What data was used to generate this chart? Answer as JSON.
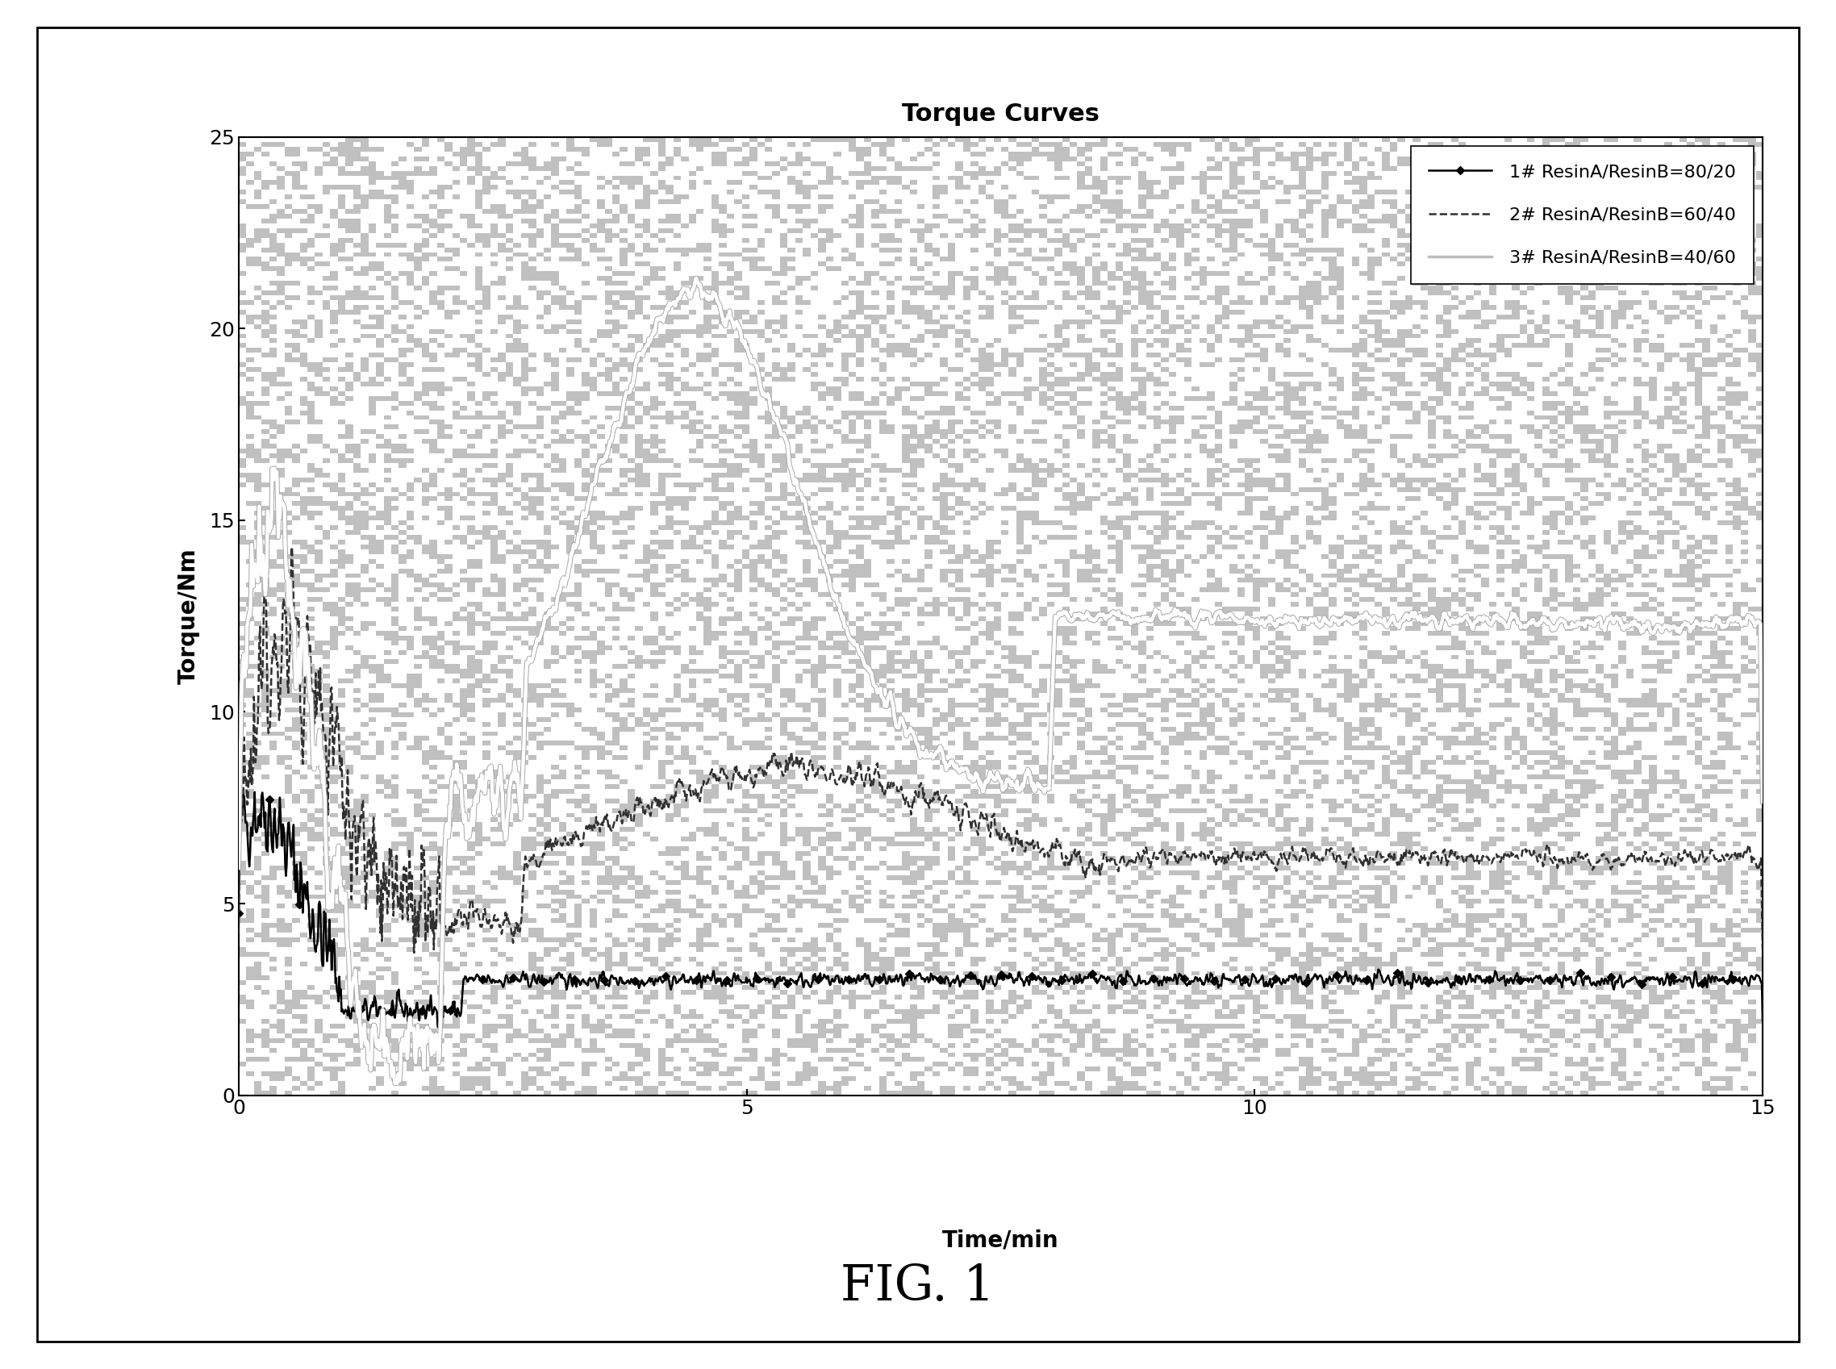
{
  "title": "Torque Curves",
  "xlabel": "Time/min",
  "ylabel": "Torque/Nm",
  "xlim": [
    0,
    15
  ],
  "ylim": [
    0,
    25
  ],
  "xticks": [
    0,
    5,
    10,
    15
  ],
  "yticks": [
    0,
    5,
    10,
    15,
    20,
    25
  ],
  "fig_caption": "FIG. 1",
  "legend_entries": [
    "1# ResinA/ResinB=80/20",
    "2# ResinA/ResinB=60/40",
    "3# ResinA/ResinB=40/60"
  ],
  "background_color": "#ffffff",
  "plot_bg_color": "#c8c8c8",
  "title_fontsize": 22,
  "label_fontsize": 20,
  "tick_fontsize": 18,
  "legend_fontsize": 16,
  "caption_fontsize": 44
}
